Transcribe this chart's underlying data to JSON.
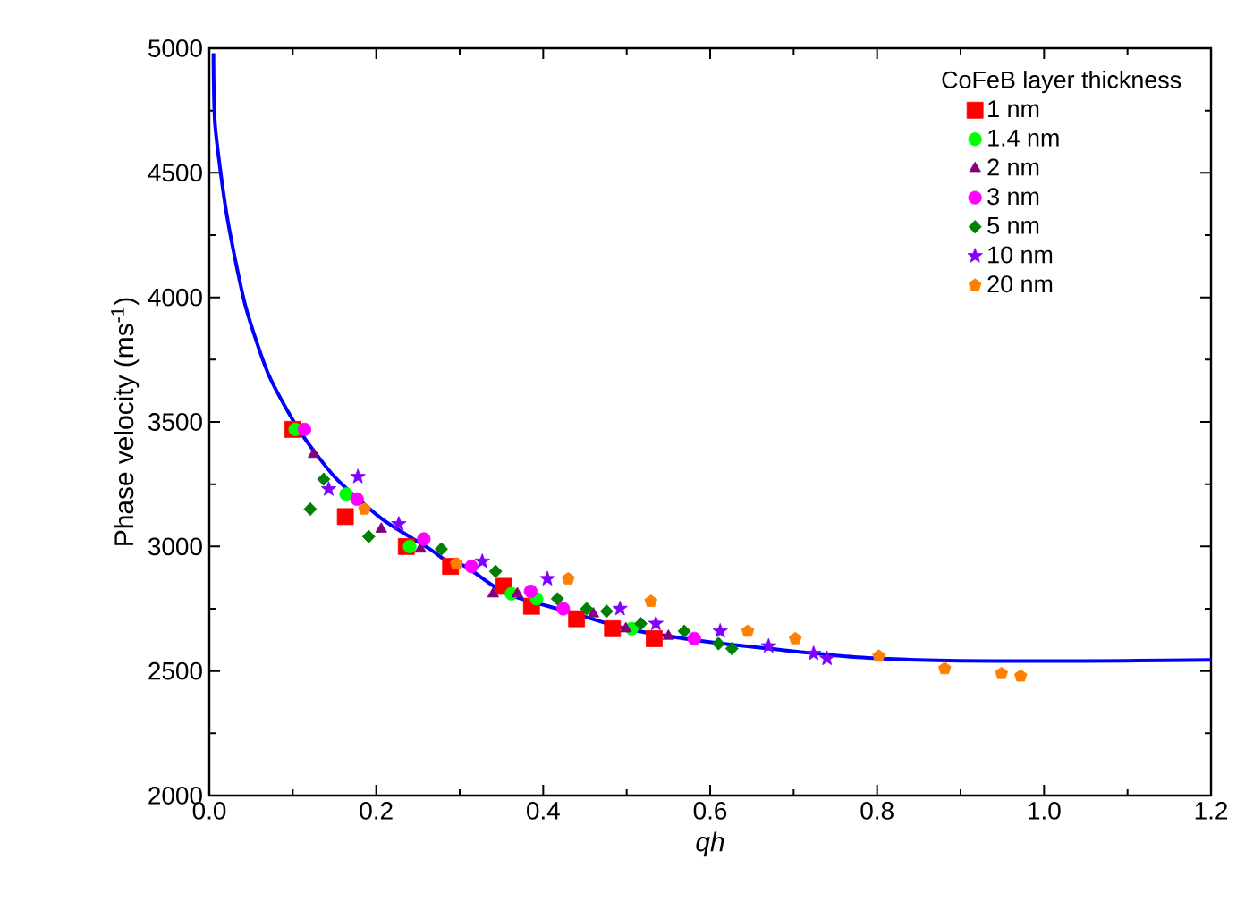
{
  "chart_data": {
    "type": "scatter",
    "xlabel": "qh",
    "ylabel": "Phase velocity (ms$^{-1}$)",
    "legend_title": "CoFeB layer thickness",
    "legend": "top right",
    "xlim": [
      0,
      1.2
    ],
    "ylim": [
      2000,
      5000
    ],
    "xticks": [
      {
        "value": 0,
        "label": "0.0"
      },
      {
        "value": 0.1,
        "label": null
      },
      {
        "value": 0.2,
        "label": "0.2"
      },
      {
        "value": 0.3,
        "label": null
      },
      {
        "value": 0.4,
        "label": "0.4"
      },
      {
        "value": 0.5,
        "label": null
      },
      {
        "value": 0.6,
        "label": "0.6"
      },
      {
        "value": 0.7,
        "label": null
      },
      {
        "value": 0.8,
        "label": "0.8"
      },
      {
        "value": 0.9,
        "label": null
      },
      {
        "value": 1.0,
        "label": "1.0"
      },
      {
        "value": 1.1,
        "label": null
      },
      {
        "value": 1.2,
        "label": "1.2"
      }
    ],
    "yticks": [
      2000,
      {
        "value": 2250,
        "label": null
      },
      2500,
      {
        "value": 2750,
        "label": null
      },
      3000,
      {
        "value": 3250,
        "label": null
      },
      3500,
      {
        "value": 3750,
        "label": null
      },
      4000,
      {
        "value": 4250,
        "label": null
      },
      4500,
      {
        "value": 4750,
        "label": null
      },
      5000
    ],
    "series": [
      {
        "name": "1 nm",
        "color": "#ff0000",
        "marker": "square",
        "x": [
          0.1,
          0.163,
          0.236,
          0.289,
          0.353,
          0.386,
          0.44,
          0.483,
          0.533
        ],
        "values": [
          3470,
          3120,
          3000,
          2920,
          2840,
          2760,
          2710,
          2670,
          2630
        ]
      },
      {
        "name": "1.4 nm",
        "color": "#00ff00",
        "marker": "circle",
        "x": [
          0.103,
          0.164,
          0.24,
          0.362,
          0.392,
          0.506
        ],
        "values": [
          3470,
          3210,
          3000,
          2810,
          2790,
          2670
        ]
      },
      {
        "name": "2 nm",
        "color": "#800080",
        "marker": "triangle",
        "x": [
          0.125,
          0.206,
          0.253,
          0.34,
          0.369,
          0.46,
          0.499,
          0.55
        ],
        "values": [
          3370,
          3070,
          2990,
          2810,
          2810,
          2730,
          2670,
          2640
        ]
      },
      {
        "name": "3 nm",
        "color": "#ff00ff",
        "marker": "circle",
        "x": [
          0.114,
          0.177,
          0.257,
          0.314,
          0.385,
          0.424,
          0.581
        ],
        "values": [
          3470,
          3190,
          3030,
          2920,
          2820,
          2750,
          2630
        ]
      },
      {
        "name": "5 nm",
        "color": "#008000",
        "marker": "diamond",
        "x": [
          0.121,
          0.137,
          0.191,
          0.278,
          0.343,
          0.417,
          0.452,
          0.476,
          0.517,
          0.569,
          0.61,
          0.626
        ],
        "values": [
          3150,
          3270,
          3040,
          2990,
          2900,
          2790,
          2750,
          2740,
          2690,
          2660,
          2610,
          2590
        ]
      },
      {
        "name": "10 nm",
        "color": "#8000ff",
        "marker": "star",
        "x": [
          0.143,
          0.178,
          0.227,
          0.327,
          0.405,
          0.492,
          0.535,
          0.612,
          0.67,
          0.724,
          0.74
        ],
        "values": [
          3230,
          3280,
          3090,
          2940,
          2870,
          2750,
          2690,
          2660,
          2600,
          2570,
          2550
        ]
      },
      {
        "name": "20 nm",
        "color": "#ff8000",
        "x": [
          0.186,
          0.296,
          0.43,
          0.529,
          0.645,
          0.702,
          0.802,
          0.881,
          0.949,
          0.972
        ],
        "values": [
          3150,
          2930,
          2870,
          2780,
          2660,
          2630,
          2560,
          2510,
          2490,
          2480
        ]
      },
      {
        "type": "line",
        "color": "#0000ff",
        "marker": "none",
        "line_style": "solid",
        "x": [
          0.005,
          0.007,
          0.021,
          0.043,
          0.071,
          0.107,
          0.15,
          0.207,
          0.264,
          0.285,
          0.307,
          0.356,
          0.428,
          0.499,
          0.57,
          0.642,
          0.777,
          0.884,
          1.0,
          1.098,
          1.2
        ],
        "values": [
          4980,
          4690,
          4330,
          3970,
          3690,
          3470,
          3280,
          3110,
          2990,
          2940,
          2920,
          2810,
          2740,
          2670,
          2630,
          2600,
          2555,
          2542,
          2540,
          2541,
          2545
        ]
      }
    ]
  }
}
